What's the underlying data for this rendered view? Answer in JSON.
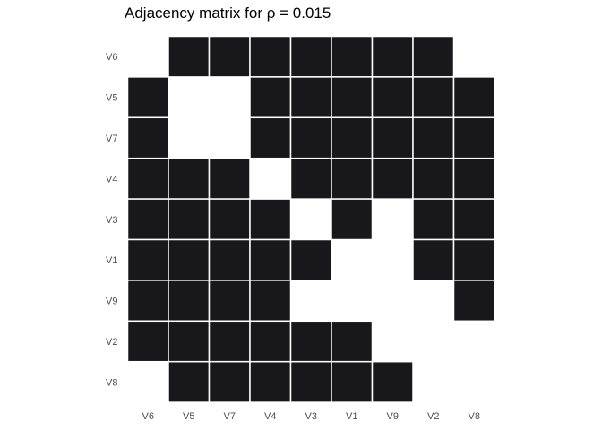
{
  "chart_data": {
    "type": "heatmap",
    "title": "Adjacency matrix for  ρ = 0.015",
    "xlabel": "",
    "ylabel": "",
    "x_categories": [
      "V6",
      "V5",
      "V7",
      "V4",
      "V3",
      "V1",
      "V9",
      "V2",
      "V8"
    ],
    "y_categories": [
      "V6",
      "V5",
      "V7",
      "V4",
      "V3",
      "V1",
      "V9",
      "V2",
      "V8"
    ],
    "values": [
      [
        0,
        1,
        1,
        1,
        1,
        1,
        1,
        1,
        0
      ],
      [
        1,
        0,
        0,
        1,
        1,
        1,
        1,
        1,
        1
      ],
      [
        1,
        0,
        0,
        1,
        1,
        1,
        1,
        1,
        1
      ],
      [
        1,
        1,
        1,
        0,
        1,
        1,
        1,
        1,
        1
      ],
      [
        1,
        1,
        1,
        1,
        0,
        1,
        0,
        1,
        1
      ],
      [
        1,
        1,
        1,
        1,
        1,
        0,
        0,
        1,
        1
      ],
      [
        1,
        1,
        1,
        1,
        0,
        0,
        0,
        0,
        1
      ],
      [
        1,
        1,
        1,
        1,
        1,
        1,
        0,
        0,
        0
      ],
      [
        0,
        1,
        1,
        1,
        1,
        1,
        1,
        0,
        0
      ]
    ],
    "legend": "none",
    "grid": false,
    "colors": {
      "edge": "#18181c",
      "no_edge": "#ffffff",
      "cell_border": "#ffffff"
    }
  }
}
